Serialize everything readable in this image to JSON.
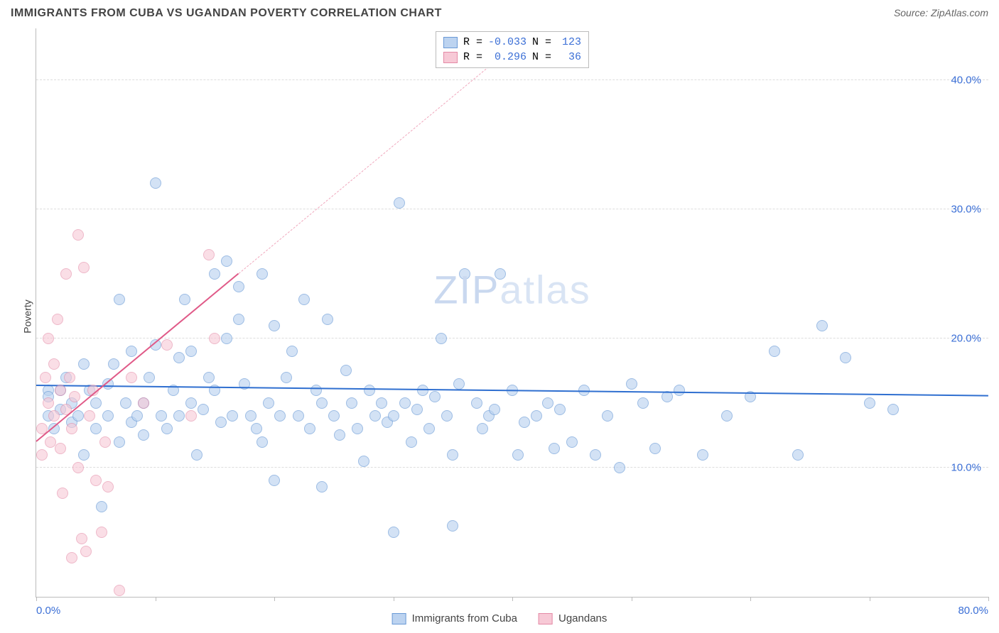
{
  "title": "IMMIGRANTS FROM CUBA VS UGANDAN POVERTY CORRELATION CHART",
  "source_label": "Source: ZipAtlas.com",
  "y_axis_label": "Poverty",
  "watermark": {
    "part1": "ZIP",
    "part2": "atlas",
    "color1": "#c9d8ef",
    "color2": "#d9e4f4"
  },
  "chart": {
    "type": "scatter",
    "background_color": "#ffffff",
    "grid_color": "#dddddd",
    "axis_color": "#bbbbbb",
    "tick_label_color": "#3b6fd6",
    "xlim": [
      0,
      80
    ],
    "ylim": [
      0,
      44
    ],
    "y_ticks": [
      10,
      20,
      30,
      40
    ],
    "y_tick_labels": [
      "10.0%",
      "20.0%",
      "30.0%",
      "40.0%"
    ],
    "x_ticks": [
      0,
      10,
      20,
      30,
      40,
      50,
      60,
      70,
      80
    ],
    "x_tick_labels_shown": {
      "0": "0.0%",
      "80": "80.0%"
    },
    "marker_radius": 8,
    "marker_border_width": 1.5,
    "series": [
      {
        "name": "Immigrants from Cuba",
        "key": "cuba",
        "fill": "#bcd3f0",
        "stroke": "#6a9ad6",
        "fill_opacity": 0.65,
        "R": "-0.033",
        "N": "123",
        "trend": {
          "x1": 0,
          "y1": 16.3,
          "x2": 80,
          "y2": 15.5,
          "color": "#2f6fd0",
          "width": 2.5,
          "dashed": false
        },
        "points": [
          [
            1,
            16
          ],
          [
            1,
            14
          ],
          [
            1,
            15.5
          ],
          [
            1.5,
            13
          ],
          [
            2,
            14.5
          ],
          [
            2,
            16
          ],
          [
            2.5,
            17
          ],
          [
            3,
            15
          ],
          [
            3,
            13.5
          ],
          [
            3.5,
            14
          ],
          [
            4,
            18
          ],
          [
            4,
            11
          ],
          [
            4.5,
            16
          ],
          [
            5,
            15
          ],
          [
            5,
            13
          ],
          [
            5.5,
            7
          ],
          [
            6,
            14
          ],
          [
            6,
            16.5
          ],
          [
            6.5,
            18
          ],
          [
            7,
            12
          ],
          [
            7,
            23
          ],
          [
            7.5,
            15
          ],
          [
            8,
            13.5
          ],
          [
            8,
            19
          ],
          [
            8.5,
            14
          ],
          [
            9,
            12.5
          ],
          [
            9,
            15
          ],
          [
            9.5,
            17
          ],
          [
            10,
            32
          ],
          [
            10,
            19.5
          ],
          [
            10.5,
            14
          ],
          [
            11,
            13
          ],
          [
            11.5,
            16
          ],
          [
            12,
            18.5
          ],
          [
            12,
            14
          ],
          [
            12.5,
            23
          ],
          [
            13,
            19
          ],
          [
            13,
            15
          ],
          [
            13.5,
            11
          ],
          [
            14,
            14.5
          ],
          [
            14.5,
            17
          ],
          [
            15,
            25
          ],
          [
            15,
            16
          ],
          [
            15.5,
            13.5
          ],
          [
            16,
            26
          ],
          [
            16,
            20
          ],
          [
            16.5,
            14
          ],
          [
            17,
            24
          ],
          [
            17,
            21.5
          ],
          [
            17.5,
            16.5
          ],
          [
            18,
            14
          ],
          [
            18.5,
            13
          ],
          [
            19,
            25
          ],
          [
            19,
            12
          ],
          [
            19.5,
            15
          ],
          [
            20,
            21
          ],
          [
            20,
            9
          ],
          [
            20.5,
            14
          ],
          [
            21,
            17
          ],
          [
            21.5,
            19
          ],
          [
            22,
            14
          ],
          [
            22.5,
            23
          ],
          [
            23,
            13
          ],
          [
            23.5,
            16
          ],
          [
            24,
            8.5
          ],
          [
            24,
            15
          ],
          [
            24.5,
            21.5
          ],
          [
            25,
            14
          ],
          [
            25.5,
            12.5
          ],
          [
            26,
            17.5
          ],
          [
            26.5,
            15
          ],
          [
            27,
            13
          ],
          [
            27.5,
            10.5
          ],
          [
            28,
            16
          ],
          [
            28.5,
            14
          ],
          [
            29,
            15
          ],
          [
            29.5,
            13.5
          ],
          [
            30,
            5
          ],
          [
            30,
            14
          ],
          [
            30.5,
            30.5
          ],
          [
            31,
            15
          ],
          [
            31.5,
            12
          ],
          [
            32,
            14.5
          ],
          [
            32.5,
            16
          ],
          [
            33,
            13
          ],
          [
            33.5,
            15.5
          ],
          [
            34,
            20
          ],
          [
            34.5,
            14
          ],
          [
            35,
            5.5
          ],
          [
            35,
            11
          ],
          [
            35.5,
            16.5
          ],
          [
            36,
            25
          ],
          [
            37,
            15
          ],
          [
            37.5,
            13
          ],
          [
            38,
            14
          ],
          [
            38.5,
            14.5
          ],
          [
            39,
            25
          ],
          [
            40,
            16
          ],
          [
            40.5,
            11
          ],
          [
            41,
            13.5
          ],
          [
            42,
            14
          ],
          [
            43,
            15
          ],
          [
            43.5,
            11.5
          ],
          [
            44,
            14.5
          ],
          [
            45,
            12
          ],
          [
            46,
            16
          ],
          [
            47,
            11
          ],
          [
            48,
            14
          ],
          [
            49,
            10
          ],
          [
            50,
            16.5
          ],
          [
            51,
            15
          ],
          [
            52,
            11.5
          ],
          [
            53,
            15.5
          ],
          [
            54,
            16
          ],
          [
            56,
            11
          ],
          [
            58,
            14
          ],
          [
            60,
            15.5
          ],
          [
            62,
            19
          ],
          [
            64,
            11
          ],
          [
            66,
            21
          ],
          [
            68,
            18.5
          ],
          [
            70,
            15
          ],
          [
            72,
            14.5
          ]
        ]
      },
      {
        "name": "Ugandans",
        "key": "uganda",
        "fill": "#f7c9d6",
        "stroke": "#e48aa6",
        "fill_opacity": 0.6,
        "R": "0.296",
        "N": "36",
        "trend_solid": {
          "x1": 0,
          "y1": 12,
          "x2": 17,
          "y2": 25,
          "color": "#e05a88",
          "width": 2,
          "dashed": false
        },
        "trend_dashed": {
          "x1": 17,
          "y1": 25,
          "x2": 38,
          "y2": 41,
          "color": "#f0a8bd",
          "width": 1.5,
          "dashed": true
        },
        "points": [
          [
            0.5,
            11
          ],
          [
            0.5,
            13
          ],
          [
            0.8,
            17
          ],
          [
            1,
            15
          ],
          [
            1,
            20
          ],
          [
            1.2,
            12
          ],
          [
            1.5,
            18
          ],
          [
            1.5,
            14
          ],
          [
            1.8,
            21.5
          ],
          [
            2,
            16
          ],
          [
            2,
            11.5
          ],
          [
            2.2,
            8
          ],
          [
            2.5,
            25
          ],
          [
            2.5,
            14.5
          ],
          [
            2.8,
            17
          ],
          [
            3,
            3
          ],
          [
            3,
            13
          ],
          [
            3.2,
            15.5
          ],
          [
            3.5,
            28
          ],
          [
            3.5,
            10
          ],
          [
            3.8,
            4.5
          ],
          [
            4,
            25.5
          ],
          [
            4.2,
            3.5
          ],
          [
            4.5,
            14
          ],
          [
            4.8,
            16
          ],
          [
            5,
            9
          ],
          [
            5.5,
            5
          ],
          [
            5.8,
            12
          ],
          [
            6,
            8.5
          ],
          [
            7,
            0.5
          ],
          [
            8,
            17
          ],
          [
            9,
            15
          ],
          [
            11,
            19.5
          ],
          [
            13,
            14
          ],
          [
            14.5,
            26.5
          ],
          [
            15,
            20
          ]
        ]
      }
    ]
  },
  "stats_box": {
    "border_color": "#bbbbbb",
    "rows": [
      {
        "swatch_fill": "#bcd3f0",
        "swatch_stroke": "#6a9ad6",
        "r_label": "R =",
        "r_val": "-0.033",
        "n_label": "N =",
        "n_val": "123"
      },
      {
        "swatch_fill": "#f7c9d6",
        "swatch_stroke": "#e48aa6",
        "r_label": "R =",
        "r_val": "0.296",
        "n_label": "N =",
        "n_val": "36"
      }
    ]
  },
  "bottom_legend": [
    {
      "swatch_fill": "#bcd3f0",
      "swatch_stroke": "#6a9ad6",
      "label": "Immigrants from Cuba"
    },
    {
      "swatch_fill": "#f7c9d6",
      "swatch_stroke": "#e48aa6",
      "label": "Ugandans"
    }
  ]
}
